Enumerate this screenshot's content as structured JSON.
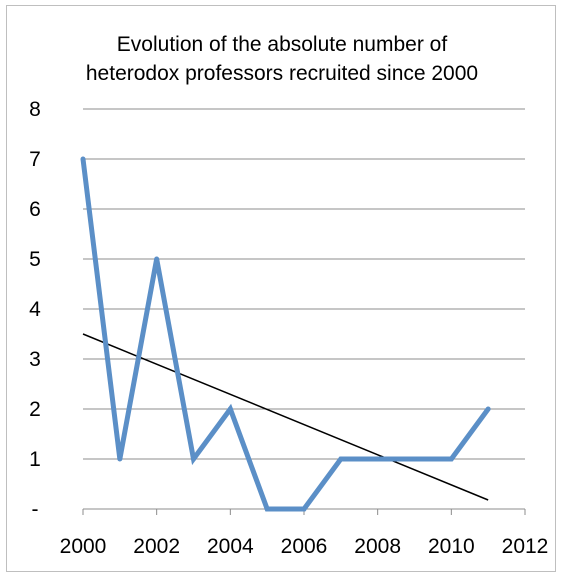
{
  "chart_data": {
    "type": "line",
    "title_lines": [
      "Evolution of the absolute number of",
      "heterodox professors recruited since 2000"
    ],
    "xlabel": "",
    "ylabel": "",
    "x": [
      2000,
      2001,
      2002,
      2003,
      2004,
      2005,
      2006,
      2007,
      2008,
      2009,
      2010,
      2011
    ],
    "series": [
      {
        "values": [
          7,
          1,
          5,
          1,
          2,
          0,
          0,
          1,
          1,
          1,
          1,
          2
        ],
        "color": "#5b8fc7"
      }
    ],
    "trendline": {
      "type": "linear",
      "from": [
        2000,
        3.5
      ],
      "to": [
        2011,
        0.18
      ],
      "color": "#000000"
    },
    "xlim": [
      2000,
      2012
    ],
    "ylim": [
      0,
      8
    ],
    "x_ticks": [
      "2000",
      "2002",
      "2004",
      "2006",
      "2008",
      "2010",
      "2012"
    ],
    "y_ticks": [
      "-",
      "1",
      "2",
      "3",
      "4",
      "5",
      "6",
      "7",
      "8"
    ],
    "grid": true,
    "legend": "none"
  }
}
